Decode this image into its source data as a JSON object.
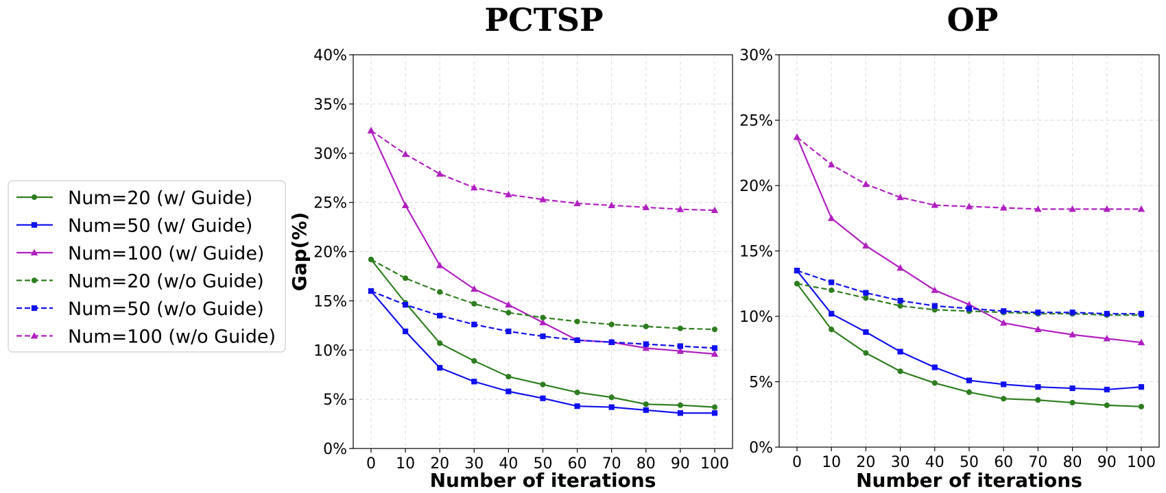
{
  "legend": {
    "placement": "left",
    "entries": [
      {
        "label": "Num=20 (w/ Guide)",
        "color": "#2e7d1f",
        "dash": "solid",
        "marker": "circle"
      },
      {
        "label": "Num=50 (w/ Guide)",
        "color": "#1010ee",
        "dash": "solid",
        "marker": "square"
      },
      {
        "label": "Num=100 (w/ Guide)",
        "color": "#b020c0",
        "dash": "solid",
        "marker": "triangle"
      },
      {
        "label": "Num=20 (w/o Guide)",
        "color": "#2e7d1f",
        "dash": "dashed",
        "marker": "circle"
      },
      {
        "label": "Num=50 (w/o Guide)",
        "color": "#1010ee",
        "dash": "dashed",
        "marker": "square"
      },
      {
        "label": "Num=100 (w/o Guide)",
        "color": "#b020c0",
        "dash": "dashed",
        "marker": "triangle"
      }
    ]
  },
  "chart_data": [
    {
      "type": "line",
      "title": "PCTSP",
      "xlabel": "Number of iterations",
      "ylabel": "Gap(%)",
      "x": [
        0,
        10,
        20,
        30,
        40,
        50,
        60,
        70,
        80,
        90,
        100
      ],
      "xticks": [
        "0",
        "10",
        "20",
        "30",
        "40",
        "50",
        "60",
        "70",
        "80",
        "90",
        "100"
      ],
      "ylim": [
        0,
        40
      ],
      "yticks": [
        0,
        5,
        10,
        15,
        20,
        25,
        30,
        35,
        40
      ],
      "ytick_labels": [
        "0%",
        "5%",
        "10%",
        "15%",
        "20%",
        "25%",
        "30%",
        "35%",
        "40%"
      ],
      "grid": true,
      "series": [
        {
          "name": "Num=20 (w/ Guide)",
          "values": [
            19.2,
            14.8,
            10.7,
            8.9,
            7.3,
            6.5,
            5.7,
            5.2,
            4.5,
            4.4,
            4.2
          ]
        },
        {
          "name": "Num=50 (w/ Guide)",
          "values": [
            16.0,
            11.9,
            8.2,
            6.8,
            5.8,
            5.1,
            4.3,
            4.2,
            3.9,
            3.6,
            3.6
          ]
        },
        {
          "name": "Num=100 (w/ Guide)",
          "values": [
            32.3,
            24.7,
            18.6,
            16.2,
            14.6,
            12.8,
            11.0,
            10.8,
            10.2,
            9.9,
            9.6
          ]
        },
        {
          "name": "Num=20 (w/o Guide)",
          "values": [
            19.2,
            17.3,
            15.9,
            14.7,
            13.8,
            13.3,
            12.9,
            12.6,
            12.4,
            12.2,
            12.1
          ]
        },
        {
          "name": "Num=50 (w/o Guide)",
          "values": [
            16.0,
            14.6,
            13.5,
            12.6,
            11.9,
            11.4,
            11.0,
            10.8,
            10.6,
            10.4,
            10.2
          ]
        },
        {
          "name": "Num=100 (w/o Guide)",
          "values": [
            32.3,
            29.9,
            27.9,
            26.5,
            25.8,
            25.3,
            24.9,
            24.7,
            24.5,
            24.3,
            24.2
          ]
        }
      ]
    },
    {
      "type": "line",
      "title": "OP",
      "xlabel": "Number of iterations",
      "ylabel": "",
      "x": [
        0,
        10,
        20,
        30,
        40,
        50,
        60,
        70,
        80,
        90,
        100
      ],
      "xticks": [
        "0",
        "10",
        "20",
        "30",
        "40",
        "50",
        "60",
        "70",
        "80",
        "90",
        "100"
      ],
      "ylim": [
        0,
        30
      ],
      "yticks": [
        0,
        5,
        10,
        15,
        20,
        25,
        30
      ],
      "ytick_labels": [
        "0%",
        "5%",
        "10%",
        "15%",
        "20%",
        "25%",
        "30%"
      ],
      "grid": true,
      "series": [
        {
          "name": "Num=20 (w/ Guide)",
          "values": [
            12.5,
            9.0,
            7.2,
            5.8,
            4.9,
            4.2,
            3.7,
            3.6,
            3.4,
            3.2,
            3.1
          ]
        },
        {
          "name": "Num=50 (w/ Guide)",
          "values": [
            13.5,
            10.2,
            8.8,
            7.3,
            6.1,
            5.1,
            4.8,
            4.6,
            4.5,
            4.4,
            4.6
          ]
        },
        {
          "name": "Num=100 (w/ Guide)",
          "values": [
            23.7,
            17.5,
            15.4,
            13.7,
            12.0,
            10.9,
            9.5,
            9.0,
            8.6,
            8.3,
            8.0
          ]
        },
        {
          "name": "Num=20 (w/o Guide)",
          "values": [
            12.5,
            12.0,
            11.4,
            10.8,
            10.5,
            10.4,
            10.3,
            10.2,
            10.2,
            10.1,
            10.1
          ]
        },
        {
          "name": "Num=50 (w/o Guide)",
          "values": [
            13.5,
            12.6,
            11.8,
            11.2,
            10.8,
            10.6,
            10.4,
            10.3,
            10.3,
            10.2,
            10.2
          ]
        },
        {
          "name": "Num=100 (w/o Guide)",
          "values": [
            23.7,
            21.6,
            20.1,
            19.1,
            18.5,
            18.4,
            18.3,
            18.2,
            18.2,
            18.2,
            18.2
          ]
        }
      ]
    }
  ]
}
